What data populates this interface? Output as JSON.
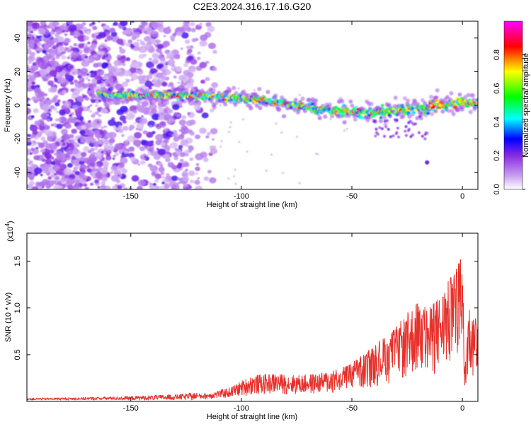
{
  "title": "C2E3.2024.316.17.16.G20",
  "chart_data": [
    {
      "type": "heatmap",
      "xlabel": "Height of straight line (km)",
      "ylabel": "Frequency (Hz)",
      "xlim": [
        -197,
        7
      ],
      "ylim": [
        -50,
        50
      ],
      "xticks": [
        -150,
        -100,
        -50,
        0
      ],
      "yticks": [
        -40,
        -20,
        0,
        20,
        40
      ],
      "colorbar": {
        "label": "Normalized spectral amplitude",
        "range": [
          0,
          1
        ],
        "ticks": [
          0.0,
          0.2,
          0.4,
          0.6,
          0.8
        ],
        "colors": [
          "#ffffff",
          "#c9a0f0",
          "#8a2be2",
          "#0000ff",
          "#00ffff",
          "#00ff00",
          "#ffff00",
          "#ff0000",
          "#ff00ff"
        ]
      },
      "ridge": {
        "x": [
          -165,
          -150,
          -140,
          -130,
          -120,
          -110,
          -100,
          -90,
          -80,
          -70,
          -60,
          -50,
          -40,
          -30,
          -20,
          -10,
          0,
          7
        ],
        "frequency": [
          6,
          6,
          6,
          6,
          6,
          5,
          4,
          3,
          1,
          -1,
          -3,
          -4,
          -5,
          -3,
          -2,
          0,
          2,
          1
        ]
      }
    },
    {
      "type": "line",
      "xlabel": "Height of straight line (km)",
      "ylabel": "SNR (10 * v/v)",
      "multiplier": "(x10",
      "multiplier_exp": "4",
      "multiplier_close": ")",
      "xlim": [
        -197,
        7
      ],
      "ylim": [
        0,
        1.8
      ],
      "xticks": [
        -150,
        -100,
        -50,
        0
      ],
      "yticks": [
        0.5,
        1.0,
        1.5
      ],
      "color": "#e8302a",
      "envelope": {
        "x": [
          -197,
          -170,
          -150,
          -130,
          -115,
          -105,
          -100,
          -95,
          -85,
          -75,
          -65,
          -55,
          -45,
          -40,
          -35,
          -30,
          -25,
          -20,
          -15,
          -10,
          -5,
          -2,
          0,
          1,
          3,
          5,
          7
        ],
        "y": [
          0.02,
          0.03,
          0.04,
          0.06,
          0.09,
          0.15,
          0.22,
          0.28,
          0.3,
          0.28,
          0.3,
          0.35,
          0.5,
          0.6,
          0.7,
          0.8,
          0.95,
          1.1,
          1.0,
          1.15,
          1.35,
          1.45,
          1.75,
          0.3,
          1.05,
          0.9,
          1.1
        ]
      }
    }
  ]
}
